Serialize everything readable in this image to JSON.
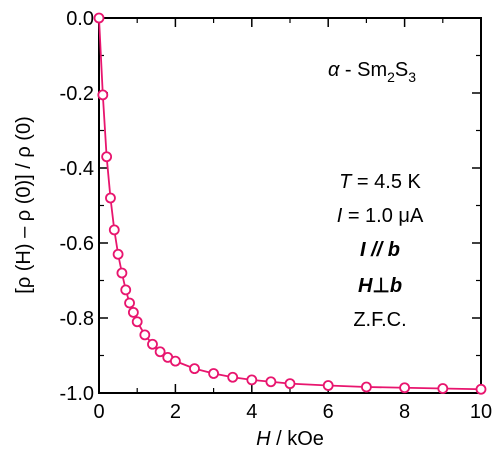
{
  "chart_data": {
    "type": "line",
    "xlabel": {
      "var": "H",
      "unit": " / kOe"
    },
    "ylabel": "[ρ (H) – ρ (0)] / ρ (0)",
    "xlim": [
      0,
      10
    ],
    "ylim": [
      -1.0,
      0.0
    ],
    "x_ticks": [
      "0",
      "2",
      "4",
      "6",
      "8",
      "10"
    ],
    "y_ticks": [
      "0.0",
      "-0.2",
      "-0.4",
      "-0.6",
      "-0.8",
      "-1.0"
    ],
    "grid": false,
    "series": [
      {
        "color": "#e8156e",
        "marker": "open-circle",
        "x": [
          0,
          0.1,
          0.2,
          0.3,
          0.4,
          0.5,
          0.6,
          0.7,
          0.8,
          0.9,
          1.0,
          1.2,
          1.4,
          1.6,
          1.8,
          2.0,
          2.5,
          3.0,
          3.5,
          4.0,
          4.5,
          5.0,
          6.0,
          7.0,
          8.0,
          9.0,
          10.0
        ],
        "y": [
          0.0,
          -0.205,
          -0.37,
          -0.48,
          -0.565,
          -0.63,
          -0.68,
          -0.725,
          -0.76,
          -0.785,
          -0.81,
          -0.845,
          -0.87,
          -0.89,
          -0.905,
          -0.915,
          -0.935,
          -0.948,
          -0.958,
          -0.965,
          -0.97,
          -0.975,
          -0.98,
          -0.984,
          -0.986,
          -0.988,
          -0.99
        ]
      }
    ],
    "annotations": {
      "material": {
        "alpha": "α",
        "dash": " - Sm",
        "sub1": "2",
        "s": "S",
        "sub2": "3"
      },
      "temperature": {
        "var": "T",
        "rest": " = 4.5 K"
      },
      "current": {
        "var": "I",
        "rest": " = 1.0 μA"
      },
      "direction1": "I // b",
      "direction2": {
        "h": "H",
        "perp": "⊥",
        "b": "b"
      },
      "protocol": "Z.F.C."
    }
  }
}
